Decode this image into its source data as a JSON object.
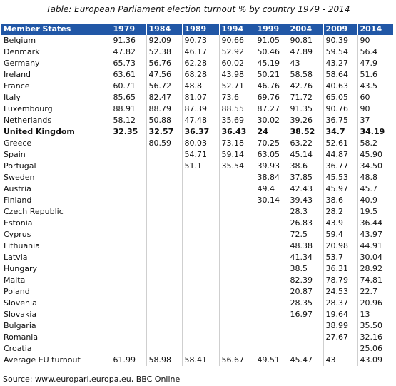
{
  "title": "Table: European Parliament election turnout % by country 1979 - 2014",
  "table": {
    "header": [
      "Member States",
      "1979",
      "1984",
      "1989",
      "1994",
      "1999",
      "2004",
      "2009",
      "2014"
    ],
    "rows": [
      [
        "Belgium",
        "91.36",
        "92.09",
        "90.73",
        "90.66",
        "91.05",
        "90.81",
        "90.39",
        "90"
      ],
      [
        "Denmark",
        "47.82",
        "52.38",
        "46.17",
        "52.92",
        "50.46",
        "47.89",
        "59.54",
        "56.4"
      ],
      [
        "Germany",
        "65.73",
        "56.76",
        "62.28",
        "60.02",
        "45.19",
        "43",
        "43.27",
        "47.9"
      ],
      [
        "Ireland",
        "63.61",
        "47.56",
        "68.28",
        "43.98",
        "50.21",
        "58.58",
        "58.64",
        "51.6"
      ],
      [
        "France",
        "60.71",
        "56.72",
        "48.8",
        "52.71",
        "46.76",
        "42.76",
        "40.63",
        "43.5"
      ],
      [
        "Italy",
        "85.65",
        "82.47",
        "81.07",
        "73.6",
        "69.76",
        "71.72",
        "65.05",
        "60"
      ],
      [
        "Luxembourg",
        "88.91",
        "88.79",
        "87.39",
        "88.55",
        "87.27",
        "91.35",
        "90.76",
        "90"
      ],
      [
        "Netherlands",
        "58.12",
        "50.88",
        "47.48",
        "35.69",
        "30.02",
        "39.26",
        "36.75",
        "37"
      ],
      [
        "United Kingdom",
        "32.35",
        "32.57",
        "36.37",
        "36.43",
        "24",
        "38.52",
        "34.7",
        "34.19"
      ],
      [
        "Greece",
        null,
        "80.59",
        "80.03",
        "73.18",
        "70.25",
        "63.22",
        "52.61",
        "58.2"
      ],
      [
        "Spain",
        null,
        null,
        "54.71",
        "59.14",
        "63.05",
        "45.14",
        "44.87",
        "45.90"
      ],
      [
        "Portugal",
        null,
        null,
        "51.1",
        "35.54",
        "39.93",
        "38.6",
        "36.77",
        "34.50"
      ],
      [
        "Sweden",
        null,
        null,
        null,
        null,
        "38.84",
        "37.85",
        "45.53",
        "48.8"
      ],
      [
        "Austria",
        null,
        null,
        null,
        null,
        "49.4",
        "42.43",
        "45.97",
        "45.7"
      ],
      [
        "Finland",
        null,
        null,
        null,
        null,
        "30.14",
        "39.43",
        "38.6",
        "40.9"
      ],
      [
        "Czech Republic",
        null,
        null,
        null,
        null,
        null,
        "28.3",
        "28.2",
        "19.5"
      ],
      [
        "Estonia",
        null,
        null,
        null,
        null,
        null,
        "26.83",
        "43.9",
        "36.44"
      ],
      [
        "Cyprus",
        null,
        null,
        null,
        null,
        null,
        "72.5",
        "59.4",
        "43.97"
      ],
      [
        "Lithuania",
        null,
        null,
        null,
        null,
        null,
        "48.38",
        "20.98",
        "44.91"
      ],
      [
        "Latvia",
        null,
        null,
        null,
        null,
        null,
        "41.34",
        "53.7",
        "30.04"
      ],
      [
        "Hungary",
        null,
        null,
        null,
        null,
        null,
        "38.5",
        "36.31",
        "28.92"
      ],
      [
        "Malta",
        null,
        null,
        null,
        null,
        null,
        "82.39",
        "78.79",
        "74.81"
      ],
      [
        "Poland",
        null,
        null,
        null,
        null,
        null,
        "20.87",
        "24.53",
        "22.7"
      ],
      [
        "Slovenia",
        null,
        null,
        null,
        null,
        null,
        "28.35",
        "28.37",
        "20.96"
      ],
      [
        "Slovakia",
        null,
        null,
        null,
        null,
        null,
        "16.97",
        "19.64",
        "13"
      ],
      [
        "Bulgaria",
        null,
        null,
        null,
        null,
        null,
        null,
        "38.99",
        "35.50"
      ],
      [
        "Romania",
        null,
        null,
        null,
        null,
        null,
        null,
        "27.67",
        "32.16"
      ],
      [
        "Croatia",
        null,
        null,
        null,
        null,
        null,
        null,
        null,
        "25.06"
      ],
      [
        "Average EU turnout",
        "61.99",
        "58.98",
        "58.41",
        "56.67",
        "49.51",
        "45.47",
        "43",
        "43.09"
      ]
    ]
  },
  "source": "Source: www.europarl.europa.eu, BBC Online"
}
